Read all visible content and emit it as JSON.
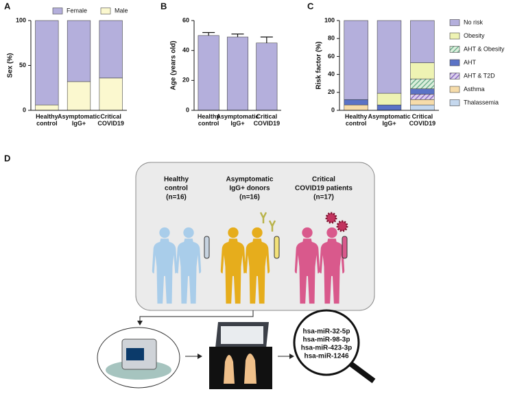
{
  "panel_labels": [
    "A",
    "B",
    "C",
    "D"
  ],
  "chart_data": [
    {
      "type": "stacked_bar",
      "y_label": "Sex (%)",
      "categories": [
        "Healthy control",
        "Asymptomatic IgG+",
        "Critical COVID19"
      ],
      "series": [
        {
          "name": "Male",
          "color": "#fbf8cf",
          "values": [
            6,
            32,
            36
          ]
        },
        {
          "name": "Female",
          "color": "#b4afdc",
          "values": [
            94,
            68,
            64
          ]
        }
      ],
      "ylim": [
        0,
        100
      ],
      "yticks": [
        0,
        50,
        100
      ],
      "legend": "top"
    },
    {
      "type": "bar",
      "y_label": "Age (years old)",
      "categories": [
        "Healthy control",
        "Asymptomatic IgG+",
        "Critical COVID19"
      ],
      "values": [
        50,
        49,
        45
      ],
      "errors": [
        2,
        2,
        4
      ],
      "color": "#b4afdc",
      "ylim": [
        0,
        60
      ],
      "yticks": [
        0,
        20,
        40,
        60
      ]
    },
    {
      "type": "stacked_bar",
      "y_label": "Risk factor (%)",
      "categories": [
        "Healthy control",
        "Asymptomatic IgG+",
        "Critical COVID19"
      ],
      "series": [
        {
          "name": "Thalassemia",
          "color": "#c5d8ee",
          "values": [
            0,
            0,
            6
          ]
        },
        {
          "name": "Asthma",
          "color": "#f6dcaa",
          "values": [
            6,
            0,
            6
          ]
        },
        {
          "name": "AHT & T2D",
          "color": "#ddd0ee",
          "hatch_color": "#8a6cc2",
          "values": [
            0,
            0,
            6
          ]
        },
        {
          "name": "AHT",
          "color": "#5b73c6",
          "values": [
            6,
            6,
            6
          ]
        },
        {
          "name": "AHT & Obesity",
          "color": "#dcefdc",
          "hatch_color": "#6fb08f",
          "values": [
            0,
            0,
            11
          ]
        },
        {
          "name": "Obesity",
          "color": "#eef3b3",
          "values": [
            0,
            13,
            18
          ]
        },
        {
          "name": "No risk",
          "color": "#b4afdc",
          "values": [
            88,
            81,
            47
          ]
        }
      ],
      "ylim": [
        0,
        100
      ],
      "yticks": [
        0,
        20,
        40,
        60,
        80,
        100
      ],
      "legend": "right"
    }
  ],
  "diagram": {
    "groups": [
      {
        "label_lines": [
          "Healthy",
          "control",
          "(n=16)"
        ]
      },
      {
        "label_lines": [
          "Asymptomatic",
          "IgG+ donors",
          "(n=16)"
        ]
      },
      {
        "label_lines": [
          "Critical",
          "COVID19 patients",
          "(n=17)"
        ]
      }
    ],
    "mirnas": [
      "hsa-miR-32-5p",
      "hsa-miR-98-3p",
      "hsa-miR-423-3p",
      "hsa-miR-1246"
    ]
  }
}
